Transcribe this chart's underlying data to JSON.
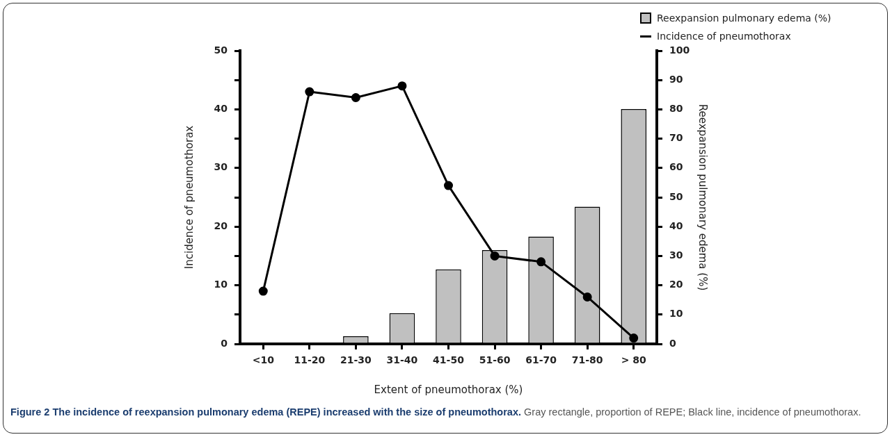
{
  "chart_data": {
    "type": "bar",
    "title": "Figure 2 The incidence of reexpansion pulmonary edema (REPE) increased with the size of pneumothorax.",
    "annotations": [
      "Gray rectangle, proportion of REPE; Black line, incidence of pneumothorax."
    ],
    "xlabel": "Extent of pneumothorax (%)",
    "ylabel": "Incidence of pneumothorax",
    "y2label": "Reexpansion pulmonary edema (%)",
    "categories": [
      "<10",
      "11-20",
      "21-30",
      "31-40",
      "41-50",
      "51-60",
      "61-70",
      "71-80",
      "> 80"
    ],
    "series": [
      {
        "name": "Reexpansion pulmonary edema (%)",
        "axis": "y2",
        "color": "#c0c0c0",
        "values": [
          0,
          0,
          2.6,
          10.5,
          25.4,
          32,
          36.6,
          46.8,
          80.1
        ]
      },
      {
        "name": "Incidence of pneumothorax",
        "type": "line",
        "color": "#000000",
        "marker": "circle",
        "values": [
          9,
          43,
          42,
          44,
          27,
          15,
          14,
          8,
          1
        ]
      }
    ],
    "ylim": [
      0,
      50
    ],
    "yticks": [
      0,
      {
        "value": 5,
        "label": null
      },
      10,
      {
        "value": 15,
        "label": null
      },
      20,
      {
        "value": 25,
        "label": null
      },
      30,
      {
        "value": 35,
        "label": null
      },
      40,
      {
        "value": 45,
        "label": null
      },
      50
    ],
    "y2lim": [
      0,
      100
    ],
    "y2ticks": [
      0,
      10,
      20,
      30,
      40,
      50,
      60,
      70,
      80,
      90,
      100
    ],
    "grid": false,
    "legend": "top right"
  }
}
